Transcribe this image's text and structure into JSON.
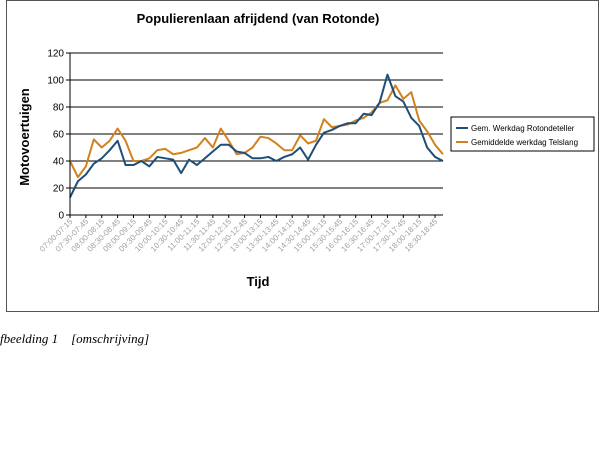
{
  "chart_data": {
    "type": "line",
    "title": "Populierenlaan afrijdend (van Rotonde)",
    "xlabel": "Tijd",
    "ylabel": "Motovoertuigen",
    "ylim": [
      0,
      120
    ],
    "yticks": [
      0,
      20,
      40,
      60,
      80,
      100,
      120
    ],
    "grid": true,
    "legend": "right",
    "x_tick_labels": [
      "07:00-07:15",
      "07:30-07:45",
      "08:00-08:15",
      "08:30-08:45",
      "09:00-09:15",
      "09:30-09:45",
      "10:00-10:15",
      "10:30-10:45",
      "11:00-11:15",
      "11:30-11:45",
      "12:00-12:15",
      "12:30-12:45",
      "13:00-13:15",
      "13:30-13:45",
      "14:00-14:15",
      "14:30-14:45",
      "15:00-15:15",
      "15:30-15:45",
      "16:00-16:15",
      "16:30-16:45",
      "17:00-17:15",
      "17:30-17:45",
      "18:00-18:15",
      "18:30-18:45"
    ],
    "series": [
      {
        "name": "Gem. Werkdag Rotondeteller",
        "color": "#1f4e79",
        "values": [
          13,
          25,
          30,
          38,
          42,
          48,
          55,
          37,
          37,
          40,
          36,
          43,
          42,
          41,
          31,
          41,
          37,
          42,
          47,
          52,
          52,
          47,
          46,
          42,
          42,
          43,
          40,
          43,
          45,
          50,
          41,
          52,
          61,
          63,
          66,
          68,
          68,
          75,
          74,
          83,
          104,
          88,
          84,
          72,
          66,
          50,
          43,
          40
        ]
      },
      {
        "name": "Gemiddelde werkdag Telslang",
        "color": "#d2811e",
        "values": [
          40,
          28,
          36,
          56,
          50,
          55,
          64,
          55,
          40,
          40,
          42,
          48,
          49,
          45,
          46,
          48,
          50,
          57,
          50,
          64,
          55,
          45,
          46,
          50,
          58,
          57,
          53,
          48,
          48,
          59,
          53,
          55,
          71,
          65,
          66,
          67,
          70,
          72,
          76,
          83,
          85,
          96,
          86,
          91,
          70,
          62,
          52,
          45
        ]
      }
    ]
  },
  "caption": {
    "text": "fbeelding 1    [omschrijving]"
  },
  "colors": {
    "axis": "#000000",
    "grid": "#000000"
  }
}
